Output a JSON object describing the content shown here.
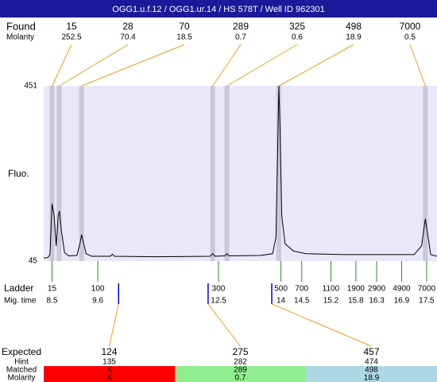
{
  "title": "OGG1.u.f.12 / OGG1.ur.14 / HS 578T / Well ID 962301",
  "labels": {
    "found": "Found",
    "found_molarity": "Molarity",
    "fluo": "Fluo.",
    "ladder": "Ladder",
    "mig_time": "Mig. time",
    "expected": "Expected",
    "hint": "Hint",
    "matched": "Matched",
    "matched_molarity": "Molarity"
  },
  "plot": {
    "xlim": [
      8.3,
      17.75
    ],
    "ylim": [
      45,
      451
    ],
    "yticks": [
      451,
      45
    ],
    "trace": {
      "x": [
        8.3,
        8.4,
        8.45,
        8.5,
        8.55,
        8.6,
        8.65,
        8.68,
        8.72,
        8.8,
        8.9,
        9.1,
        9.18,
        9.21,
        9.25,
        9.32,
        9.45,
        9.9,
        9.95,
        10.0,
        11.0,
        12.3,
        12.36,
        12.42,
        12.65,
        12.7,
        12.75,
        13.5,
        13.8,
        13.88,
        13.92,
        13.95,
        13.98,
        14.02,
        14.1,
        14.3,
        14.6,
        15.5,
        17.2,
        17.38,
        17.47,
        17.52,
        17.6,
        17.75
      ],
      "y": [
        52,
        53,
        60,
        178,
        150,
        80,
        150,
        161,
        120,
        65,
        57,
        58,
        90,
        106,
        90,
        62,
        56,
        56,
        61,
        56,
        55,
        56,
        62,
        56,
        57,
        62,
        57,
        58,
        62,
        100,
        300,
        451,
        350,
        150,
        85,
        68,
        62,
        60,
        60,
        80,
        143,
        110,
        60,
        56
      ]
    }
  },
  "found": [
    {
      "size": 15,
      "molarity": 252.5,
      "mig_time": 8.5
    },
    {
      "size": 28,
      "molarity": 70.4,
      "mig_time": 8.67
    },
    {
      "size": 70,
      "molarity": 18.5,
      "mig_time": 9.21
    },
    {
      "size": 289,
      "molarity": 0.7,
      "mig_time": 12.36
    },
    {
      "size": 325,
      "molarity": 0.6,
      "mig_time": 12.7
    },
    {
      "size": 498,
      "molarity": 18.9,
      "mig_time": 13.95
    },
    {
      "size": 7000,
      "molarity": 0.5,
      "mig_time": 17.47
    }
  ],
  "ladder": [
    {
      "size": 15,
      "mig_time": 8.5
    },
    {
      "size": 100,
      "mig_time": 9.6
    },
    {
      "size": 300,
      "mig_time": 12.5
    },
    {
      "size": 500,
      "mig_time": 14
    },
    {
      "size": 700,
      "mig_time": 14.5
    },
    {
      "size": 1100,
      "mig_time": 15.2
    },
    {
      "size": 1900,
      "mig_time": 15.8
    },
    {
      "size": 2900,
      "mig_time": 16.3
    },
    {
      "size": 4900,
      "mig_time": 16.9
    },
    {
      "size": 7000,
      "mig_time": 17.5
    }
  ],
  "expected": [
    {
      "size": 124,
      "hint": 135,
      "matched": "X",
      "molarity": "X",
      "mig_time": 10.1,
      "color": "#ff0000"
    },
    {
      "size": 275,
      "hint": 282,
      "matched": 289,
      "molarity": 0.7,
      "mig_time": 12.25,
      "color": "#90ee90"
    },
    {
      "size": 457,
      "hint": 474,
      "matched": 498,
      "molarity": 18.9,
      "mig_time": 13.78,
      "color": "#add8e6"
    }
  ]
}
